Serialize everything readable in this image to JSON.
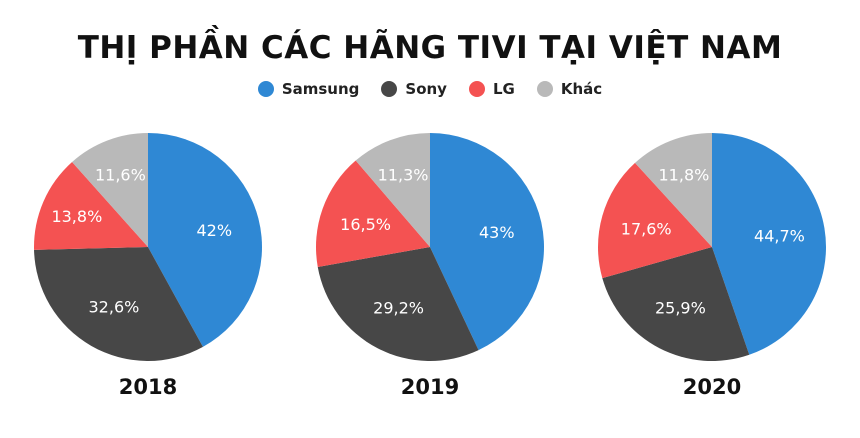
{
  "chart_data": [
    {
      "type": "pie",
      "title": "2018",
      "categories": [
        "Samsung",
        "Sony",
        "LG",
        "Khác"
      ],
      "values": [
        42,
        32.6,
        13.8,
        11.6
      ],
      "labels": [
        "42%",
        "32,6%",
        "13,8%",
        "11,6%"
      ]
    },
    {
      "type": "pie",
      "title": "2019",
      "categories": [
        "Samsung",
        "Sony",
        "LG",
        "Khác"
      ],
      "values": [
        43,
        29.2,
        16.5,
        11.3
      ],
      "labels": [
        "43%",
        "29,2%",
        "16,5%",
        "11,3%"
      ]
    },
    {
      "type": "pie",
      "title": "2020",
      "categories": [
        "Samsung",
        "Sony",
        "LG",
        "Khác"
      ],
      "values": [
        44.7,
        25.9,
        17.6,
        11.8
      ],
      "labels": [
        "44,7%",
        "25,9%",
        "17,6%",
        "11,8%"
      ]
    }
  ],
  "title": "THỊ PHẦN CÁC HÃNG TIVI TẠI VIỆT NAM",
  "legend": [
    {
      "name": "Samsung",
      "color": "#2f88d4"
    },
    {
      "name": "Sony",
      "color": "#474747"
    },
    {
      "name": "LG",
      "color": "#f45252"
    },
    {
      "name": "Khác",
      "color": "#b9b9b9"
    }
  ]
}
